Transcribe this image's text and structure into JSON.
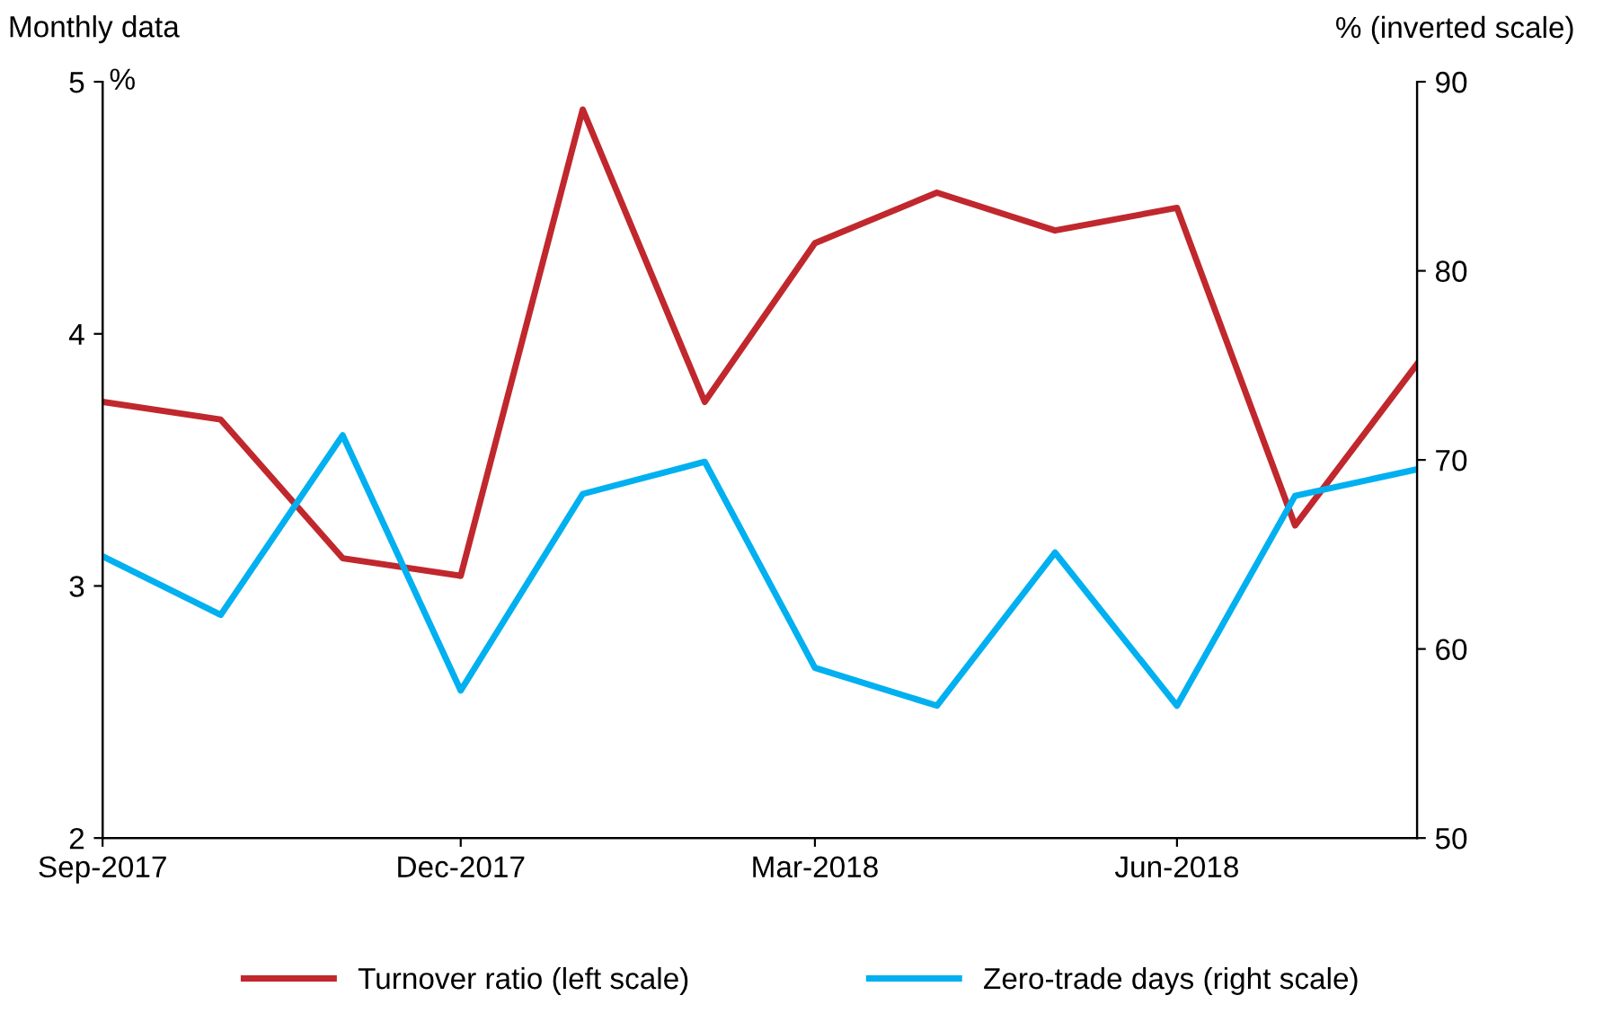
{
  "chart_data": {
    "type": "line",
    "ylabel": "%",
    "y2label": "% (inverted scale)",
    "annotations": [
      "Monthly data"
    ],
    "x": [
      "2017-09",
      "2017-10",
      "2017-11",
      "2017-12",
      "2018-01",
      "2018-02",
      "2018-03",
      "2018-04",
      "2018-05",
      "2018-06",
      "2018-07",
      "2018-08"
    ],
    "xlim": [
      "2017-09",
      "2018-08"
    ],
    "xticks": [
      {
        "value": "2017-09",
        "label": "Sep-2017"
      },
      {
        "value": "2017-12",
        "label": "Dec-2017"
      },
      {
        "value": "2018-03",
        "label": "Mar-2018"
      },
      {
        "value": "2018-06",
        "label": "Jun-2018"
      }
    ],
    "ylim": [
      2,
      5
    ],
    "yticks": [
      2,
      3,
      4,
      5
    ],
    "y2lim": [
      50,
      90
    ],
    "y2ticks": [
      50,
      60,
      70,
      80,
      90
    ],
    "grid": false,
    "legend": "bottom",
    "marker": "none",
    "line_style": "solid",
    "series": [
      {
        "name": "Turnover ratio (left scale)",
        "color": "#c0282d",
        "values": [
          3.73,
          3.66,
          3.11,
          3.04,
          4.89,
          3.73,
          4.36,
          4.56,
          4.41,
          4.5,
          3.24,
          3.88
        ]
      },
      {
        "name": "Zero-trade days (right scale)",
        "color": "#00b0f0",
        "axis": "y2",
        "values": [
          64.9,
          61.8,
          71.3,
          57.8,
          68.2,
          69.9,
          59.0,
          57.0,
          65.1,
          57.0,
          68.1,
          69.5
        ]
      }
    ]
  }
}
